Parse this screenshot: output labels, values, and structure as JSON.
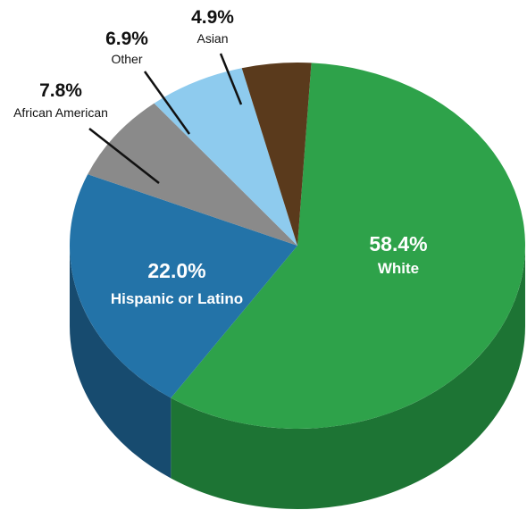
{
  "chart_data": {
    "type": "pie",
    "slices": [
      {
        "label": "White",
        "value": 58.4,
        "value_label": "58.4%",
        "color": "#2ea24a",
        "side_color": "#1d7434"
      },
      {
        "label": "Hispanic or Latino",
        "value": 22.0,
        "value_label": "22.0%",
        "color": "#2373a8",
        "side_color": "#174b6f"
      },
      {
        "label": "African American",
        "value": 7.8,
        "value_label": "7.8%",
        "color": "#8a8a8a",
        "side_color": "#5e5e5e"
      },
      {
        "label": "Other",
        "value": 6.9,
        "value_label": "6.9%",
        "color": "#8ecbee",
        "side_color": "#5e97b8"
      },
      {
        "label": "Asian",
        "value": 4.9,
        "value_label": "4.9%",
        "color": "#5a3a1c",
        "side_color": "#3a2511"
      }
    ],
    "style": "3d",
    "legend": "none"
  }
}
